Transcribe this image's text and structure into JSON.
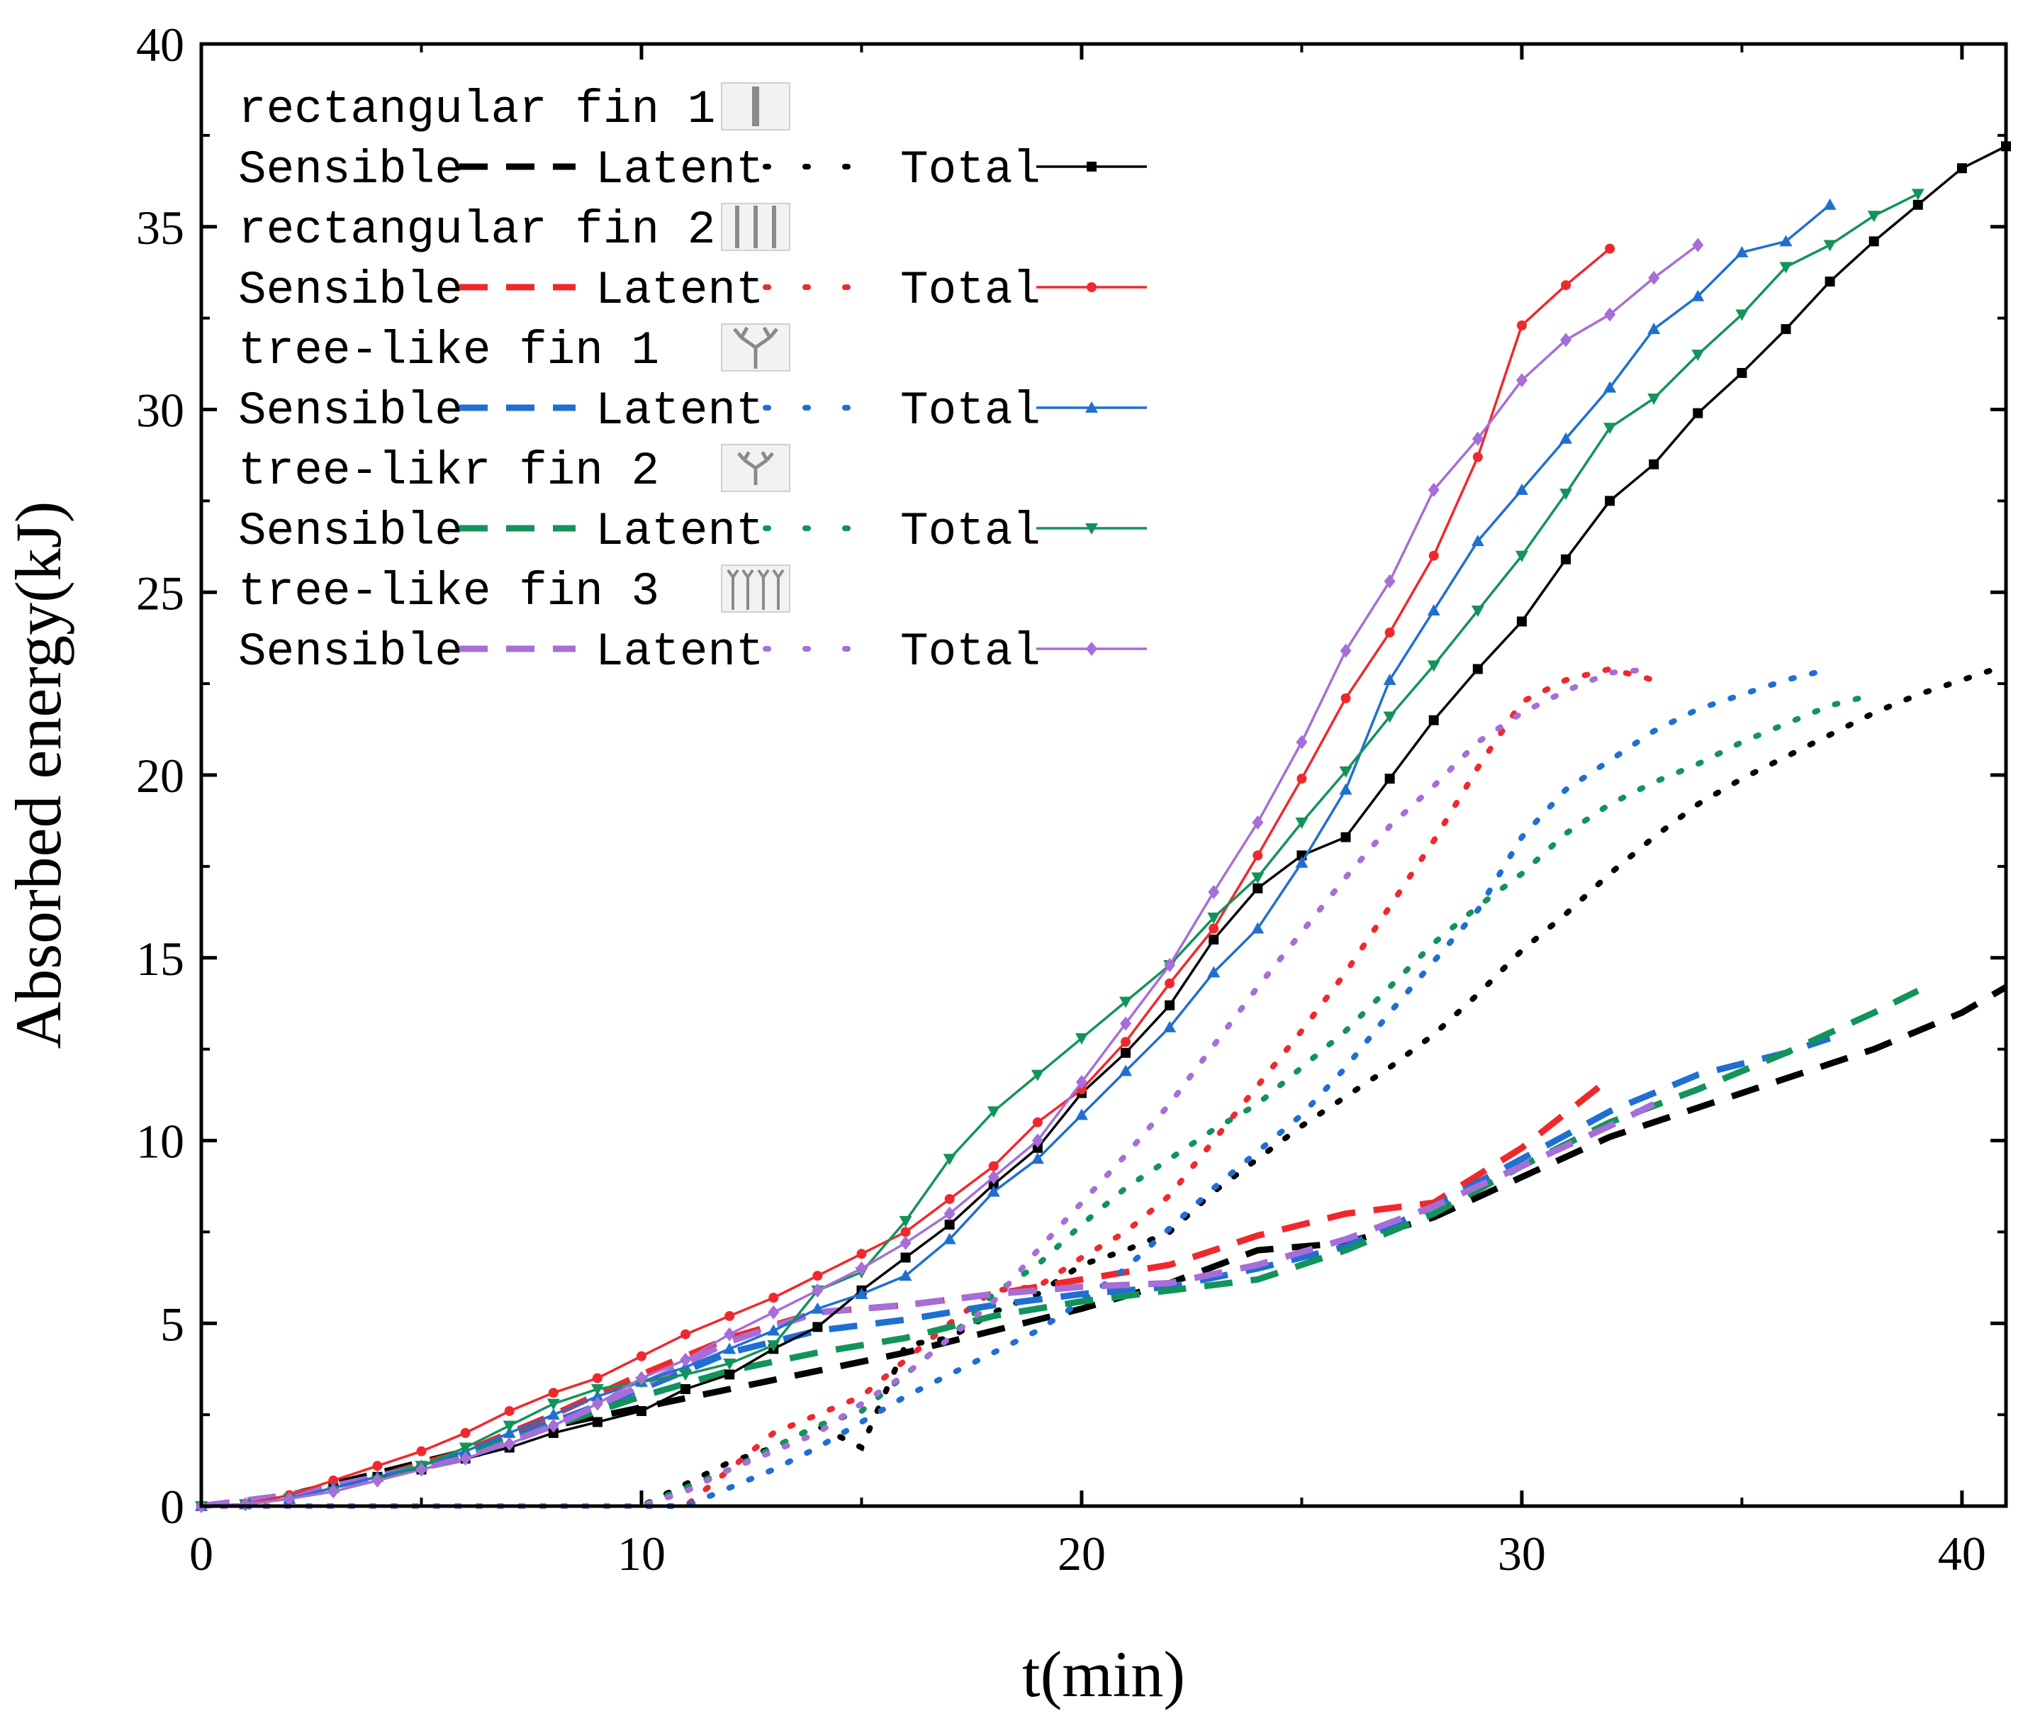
{
  "chart_data": {
    "type": "line",
    "title": "",
    "xlabel": "t(min)",
    "ylabel": "Absorbed energy(kJ)",
    "xlim": [
      0,
      41
    ],
    "ylim": [
      0,
      40
    ],
    "xticks": [
      0,
      10,
      20,
      30,
      40
    ],
    "yticks": [
      0,
      5,
      10,
      15,
      20,
      25,
      30,
      35,
      40
    ],
    "legend_position": "top-left",
    "legend_labels": {
      "sensible": "Sensible",
      "latent": "Latent",
      "total": "Total"
    },
    "groups": [
      {
        "name": "rectangular fin 1",
        "icon": "single-rectangular-fin-icon",
        "color": "#000000",
        "marker": "square",
        "sensible": {
          "x": [
            0,
            2,
            4,
            6,
            8,
            10,
            12,
            14,
            16,
            18,
            20,
            22,
            24,
            26,
            28,
            30,
            32,
            34,
            36,
            38,
            40,
            41
          ],
          "y": [
            0,
            0.3,
            0.9,
            1.5,
            2.2,
            2.7,
            3.2,
            3.7,
            4.2,
            4.8,
            5.4,
            6.1,
            7.0,
            7.2,
            7.9,
            9.0,
            10.1,
            10.9,
            11.7,
            12.5,
            13.5,
            14.2
          ]
        },
        "latent": {
          "x": [
            0,
            10,
            11,
            12,
            13,
            14,
            15,
            16,
            17,
            18,
            19,
            20,
            21,
            22,
            23,
            24,
            25,
            26,
            27,
            28,
            29,
            30,
            31,
            32,
            33,
            34,
            35,
            36,
            37,
            38,
            39,
            40,
            41
          ],
          "y": [
            0,
            0,
            0.6,
            1.2,
            1.6,
            2.2,
            1.6,
            4.4,
            4.6,
            5.3,
            5.8,
            6.6,
            7.0,
            7.5,
            8.6,
            9.5,
            10.4,
            11.2,
            12.0,
            12.9,
            14.0,
            15.2,
            16.2,
            17.3,
            18.3,
            19.2,
            19.9,
            20.5,
            21.1,
            21.7,
            22.2,
            22.6,
            23.0
          ]
        },
        "total": {
          "x": [
            0,
            1,
            2,
            3,
            4,
            5,
            6,
            7,
            8,
            9,
            10,
            11,
            12,
            13,
            14,
            15,
            16,
            17,
            18,
            19,
            20,
            21,
            22,
            23,
            24,
            25,
            26,
            27,
            28,
            29,
            30,
            31,
            32,
            33,
            34,
            35,
            36,
            37,
            38,
            39,
            40,
            41
          ],
          "y": [
            0,
            0.05,
            0.2,
            0.5,
            0.8,
            1.0,
            1.3,
            1.6,
            2.0,
            2.3,
            2.6,
            3.2,
            3.6,
            4.3,
            4.9,
            5.9,
            6.8,
            7.7,
            8.8,
            9.8,
            11.3,
            12.4,
            13.7,
            15.5,
            16.9,
            17.8,
            18.3,
            19.9,
            21.5,
            22.9,
            24.2,
            25.9,
            27.5,
            28.5,
            29.9,
            31.0,
            32.2,
            33.5,
            34.6,
            35.6,
            36.6,
            37.2
          ]
        }
      },
      {
        "name": "rectangular fin 2",
        "icon": "double-rectangular-fin-icon",
        "color": "#f0282d",
        "marker": "circle",
        "sensible": {
          "x": [
            0,
            2,
            4,
            6,
            8,
            10,
            12,
            14,
            16,
            18,
            20,
            22,
            24,
            26,
            28,
            30,
            32
          ],
          "y": [
            0,
            0.3,
            0.8,
            1.5,
            2.5,
            3.6,
            4.6,
            5.3,
            5.5,
            5.8,
            6.2,
            6.6,
            7.4,
            8.0,
            8.3,
            9.8,
            11.7
          ]
        },
        "latent": {
          "x": [
            0,
            10,
            11,
            12,
            13,
            14,
            15,
            16,
            17,
            18,
            19,
            20,
            21,
            22,
            23,
            24,
            25,
            26,
            27,
            28,
            29,
            30,
            31,
            32,
            33
          ],
          "y": [
            0,
            0,
            0,
            1.0,
            2.0,
            2.5,
            3.0,
            4.0,
            5.0,
            5.9,
            6.0,
            6.8,
            7.5,
            8.5,
            10.0,
            11.5,
            13.0,
            14.6,
            16.4,
            18.2,
            20.2,
            22.0,
            22.6,
            22.9,
            22.6
          ]
        },
        "total": {
          "x": [
            0,
            1,
            2,
            3,
            4,
            5,
            6,
            7,
            8,
            9,
            10,
            11,
            12,
            13,
            14,
            15,
            16,
            17,
            18,
            19,
            20,
            21,
            22,
            23,
            24,
            25,
            26,
            27,
            28,
            29,
            30,
            31,
            32
          ],
          "y": [
            0,
            0.05,
            0.3,
            0.7,
            1.1,
            1.5,
            2.0,
            2.6,
            3.1,
            3.5,
            4.1,
            4.7,
            5.2,
            5.7,
            6.3,
            6.9,
            7.5,
            8.4,
            9.3,
            10.5,
            11.4,
            12.7,
            14.3,
            15.8,
            17.8,
            19.9,
            22.1,
            23.9,
            26.0,
            28.7,
            32.3,
            33.4,
            34.4
          ]
        }
      },
      {
        "name": "tree-like fin 1",
        "icon": "tree-like-fin-1-icon",
        "color": "#1f6fd2",
        "marker": "triangle-up",
        "sensible": {
          "x": [
            0,
            2,
            4,
            6,
            8,
            10,
            12,
            14,
            16,
            18,
            20,
            22,
            24,
            26,
            28,
            30,
            32,
            34,
            36,
            37
          ],
          "y": [
            0,
            0.3,
            0.8,
            1.4,
            2.3,
            3.2,
            4.2,
            4.8,
            5.1,
            5.5,
            5.8,
            6.0,
            6.5,
            7.1,
            8.2,
            9.5,
            10.8,
            11.8,
            12.4,
            12.8
          ]
        },
        "latent": {
          "x": [
            0,
            11,
            12,
            13,
            14,
            15,
            16,
            17,
            18,
            19,
            20,
            21,
            22,
            23,
            24,
            25,
            26,
            27,
            28,
            29,
            30,
            31,
            32,
            33,
            34,
            35,
            36,
            37
          ],
          "y": [
            0,
            0,
            0.5,
            1.0,
            1.6,
            2.3,
            3.0,
            3.6,
            4.2,
            4.8,
            5.6,
            6.5,
            7.6,
            8.7,
            9.7,
            10.7,
            12.0,
            13.5,
            14.9,
            16.3,
            18.3,
            19.6,
            20.4,
            21.2,
            21.8,
            22.2,
            22.6,
            22.9
          ]
        },
        "total": {
          "x": [
            0,
            1,
            2,
            3,
            4,
            5,
            6,
            7,
            8,
            9,
            10,
            11,
            12,
            13,
            14,
            15,
            16,
            17,
            18,
            19,
            20,
            21,
            22,
            23,
            24,
            25,
            26,
            27,
            28,
            29,
            30,
            31,
            32,
            33,
            34,
            35,
            36,
            37
          ],
          "y": [
            0,
            0.05,
            0.2,
            0.5,
            0.8,
            1.1,
            1.5,
            2.0,
            2.5,
            3.0,
            3.4,
            3.8,
            4.3,
            4.8,
            5.4,
            5.8,
            6.3,
            7.3,
            8.6,
            9.5,
            10.7,
            11.9,
            13.1,
            14.6,
            15.8,
            17.6,
            19.6,
            22.6,
            24.5,
            26.4,
            27.8,
            29.2,
            30.6,
            32.2,
            33.1,
            34.3,
            34.6,
            35.6
          ]
        }
      },
      {
        "name": "tree-likr fin 2",
        "icon": "tree-like-fin-2-icon",
        "color": "#12935a",
        "marker": "triangle-down",
        "sensible": {
          "x": [
            0,
            2,
            4,
            6,
            8,
            10,
            12,
            14,
            16,
            18,
            20,
            22,
            24,
            26,
            28,
            30,
            32,
            34,
            36,
            38,
            39
          ],
          "y": [
            0,
            0.3,
            0.8,
            1.4,
            2.2,
            3.0,
            3.7,
            4.2,
            4.6,
            5.2,
            5.6,
            5.9,
            6.2,
            7.0,
            8.0,
            9.3,
            10.5,
            11.4,
            12.4,
            13.5,
            14.1
          ]
        },
        "latent": {
          "x": [
            0,
            10,
            11,
            12,
            13,
            14,
            15,
            16,
            17,
            18,
            19,
            20,
            21,
            22,
            23,
            24,
            25,
            26,
            27,
            28,
            29,
            30,
            31,
            32,
            33,
            34,
            35,
            36,
            37,
            38
          ],
          "y": [
            0,
            0,
            0.5,
            1.0,
            1.6,
            2.2,
            2.6,
            3.6,
            4.6,
            5.8,
            6.6,
            7.7,
            8.7,
            9.5,
            10.3,
            11.0,
            12.0,
            13.0,
            14.2,
            15.4,
            16.4,
            17.3,
            18.4,
            19.2,
            19.8,
            20.3,
            20.9,
            21.4,
            21.9,
            22.2
          ]
        },
        "total": {
          "x": [
            0,
            1,
            2,
            3,
            4,
            5,
            6,
            7,
            8,
            9,
            10,
            11,
            12,
            13,
            14,
            15,
            16,
            17,
            18,
            19,
            20,
            21,
            22,
            23,
            24,
            25,
            26,
            27,
            28,
            29,
            30,
            31,
            32,
            33,
            34,
            35,
            36,
            37,
            38,
            39
          ],
          "y": [
            0,
            0.05,
            0.2,
            0.4,
            0.7,
            1.1,
            1.6,
            2.2,
            2.8,
            3.2,
            3.4,
            3.6,
            3.9,
            4.4,
            5.9,
            6.4,
            7.8,
            9.5,
            10.8,
            11.8,
            12.8,
            13.8,
            14.8,
            16.1,
            17.2,
            18.7,
            20.1,
            21.6,
            23.0,
            24.5,
            26.0,
            27.7,
            29.5,
            30.3,
            31.5,
            32.6,
            33.9,
            34.5,
            35.3,
            35.9
          ]
        }
      },
      {
        "name": "tree-like fin 3",
        "icon": "tree-like-fin-3-icon",
        "color": "#a66ed8",
        "marker": "diamond",
        "sensible": {
          "x": [
            0,
            2,
            4,
            6,
            8,
            10,
            12,
            14,
            16,
            18,
            20,
            22,
            24,
            26,
            28,
            30,
            32,
            33
          ],
          "y": [
            0,
            0.3,
            0.8,
            1.3,
            2.2,
            3.3,
            4.5,
            5.3,
            5.5,
            5.8,
            6.0,
            6.1,
            6.6,
            7.3,
            8.2,
            9.3,
            10.4,
            11.0
          ]
        },
        "latent": {
          "x": [
            0,
            10,
            11,
            12,
            13,
            14,
            15,
            16,
            17,
            18,
            19,
            20,
            21,
            22,
            23,
            24,
            25,
            26,
            27,
            28,
            29,
            30,
            31,
            32,
            33
          ],
          "y": [
            0,
            0,
            0.4,
            1.0,
            1.5,
            2.0,
            2.8,
            3.6,
            4.6,
            5.6,
            7.0,
            8.3,
            9.6,
            11.0,
            12.6,
            14.2,
            15.7,
            17.2,
            18.6,
            19.7,
            20.9,
            21.7,
            22.3,
            22.8,
            22.9
          ]
        },
        "total": {
          "x": [
            0,
            1,
            2,
            3,
            4,
            5,
            6,
            7,
            8,
            9,
            10,
            11,
            12,
            13,
            14,
            15,
            16,
            17,
            18,
            19,
            20,
            21,
            22,
            23,
            24,
            25,
            26,
            27,
            28,
            29,
            30,
            31,
            32,
            33,
            34
          ],
          "y": [
            0,
            0.05,
            0.2,
            0.4,
            0.7,
            1.0,
            1.3,
            1.7,
            2.2,
            2.8,
            3.5,
            4.0,
            4.7,
            5.3,
            5.9,
            6.5,
            7.2,
            8.0,
            9.0,
            10.0,
            11.6,
            13.2,
            14.8,
            16.8,
            18.7,
            20.9,
            23.4,
            25.3,
            27.8,
            29.2,
            30.8,
            31.9,
            32.6,
            33.6,
            34.5
          ]
        }
      }
    ]
  }
}
